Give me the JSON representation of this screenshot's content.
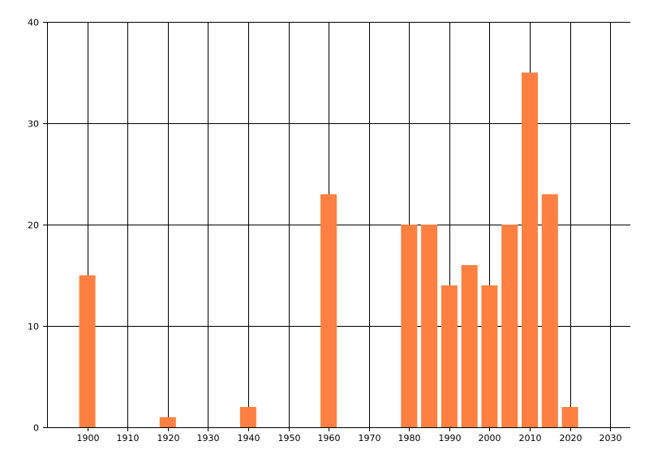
{
  "chart_data": {
    "type": "bar",
    "x": [
      1900,
      1920,
      1940,
      1960,
      1980,
      1985,
      1990,
      1995,
      2000,
      2005,
      2010,
      2015,
      2020
    ],
    "values": [
      15,
      1,
      2,
      23,
      20,
      20,
      14,
      16,
      14,
      20,
      35,
      23,
      2
    ],
    "xlim": [
      1890,
      2035
    ],
    "ylim": [
      0,
      40
    ],
    "x_ticks": [
      "1900",
      "1910",
      "1920",
      "1930",
      "1940",
      "1950",
      "1960",
      "1970",
      "1980",
      "1990",
      "2000",
      "2010",
      "2020",
      "2030"
    ],
    "y_ticks": [
      "0",
      "10",
      "20",
      "30",
      "40"
    ],
    "title": "",
    "xlabel": "",
    "ylabel": "",
    "grid": true,
    "bar_color": "#FF8040",
    "grid_color": "#000000"
  }
}
